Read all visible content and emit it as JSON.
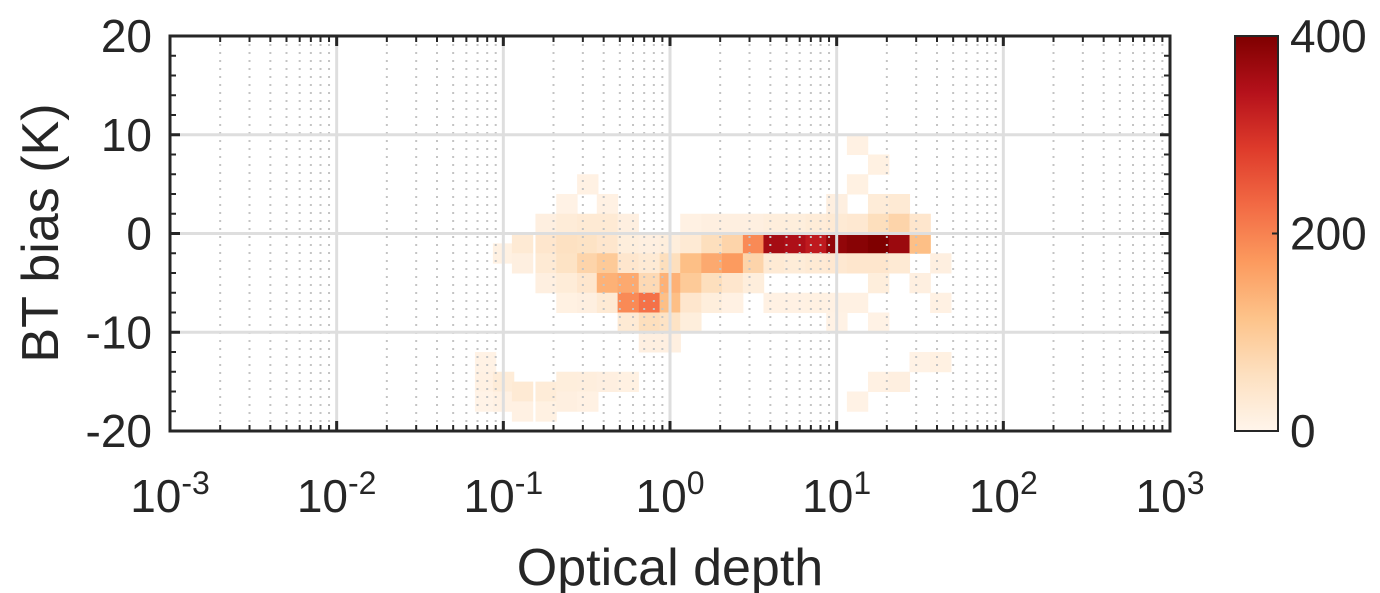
{
  "chart_data": {
    "type": "heatmap",
    "xlabel": "Optical depth",
    "ylabel": "BT bias (K)",
    "x_scale": "log",
    "xlim": [
      0.001,
      1000
    ],
    "ylim": [
      -20,
      20
    ],
    "x_ticks": [
      {
        "base": "10",
        "exp": "-3",
        "value": 0.001
      },
      {
        "base": "10",
        "exp": "-2",
        "value": 0.01
      },
      {
        "base": "10",
        "exp": "-1",
        "value": 0.1
      },
      {
        "base": "10",
        "exp": "0",
        "value": 1
      },
      {
        "base": "10",
        "exp": "1",
        "value": 10
      },
      {
        "base": "10",
        "exp": "2",
        "value": 100
      },
      {
        "base": "10",
        "exp": "3",
        "value": 1000
      }
    ],
    "y_ticks": [
      {
        "label": "20",
        "value": 20
      },
      {
        "label": "10",
        "value": 10
      },
      {
        "label": "0",
        "value": 0
      },
      {
        "label": "-10",
        "value": -10
      },
      {
        "label": "-20",
        "value": -20
      }
    ],
    "grid": true,
    "colorbar": {
      "range": [
        0,
        400
      ],
      "ticks": [
        {
          "label": "400",
          "value": 400
        },
        {
          "label": "200",
          "value": 200
        },
        {
          "label": "0",
          "value": 0
        }
      ],
      "colormap": [
        "#fff5eb",
        "#fde0c0",
        "#fdc38a",
        "#fc9a5e",
        "#f26a44",
        "#de3b2b",
        "#b5111b",
        "#7f0000"
      ]
    },
    "bin_width_log10": 0.125,
    "bin_height": 2,
    "cells": [
      [
        0.078,
        -13,
        8
      ],
      [
        0.078,
        -15,
        10
      ],
      [
        0.078,
        -17,
        5
      ],
      [
        0.1,
        -2,
        12
      ],
      [
        0.1,
        -15,
        25
      ],
      [
        0.1,
        -17,
        10
      ],
      [
        0.13,
        -1,
        30
      ],
      [
        0.13,
        -3,
        15
      ],
      [
        0.13,
        -16,
        30
      ],
      [
        0.13,
        -18,
        10
      ],
      [
        0.18,
        1,
        15
      ],
      [
        0.18,
        -1,
        40
      ],
      [
        0.18,
        -3,
        30
      ],
      [
        0.18,
        -5,
        15
      ],
      [
        0.18,
        -16,
        25
      ],
      [
        0.18,
        -18,
        12
      ],
      [
        0.24,
        3,
        8
      ],
      [
        0.24,
        1,
        25
      ],
      [
        0.24,
        -1,
        55
      ],
      [
        0.24,
        -3,
        50
      ],
      [
        0.24,
        -5,
        25
      ],
      [
        0.24,
        -7,
        12
      ],
      [
        0.24,
        -15,
        20
      ],
      [
        0.24,
        -17,
        15
      ],
      [
        0.32,
        5,
        10
      ],
      [
        0.32,
        1,
        30
      ],
      [
        0.32,
        -1,
        50
      ],
      [
        0.32,
        -3,
        80
      ],
      [
        0.32,
        -5,
        40
      ],
      [
        0.32,
        -7,
        15
      ],
      [
        0.32,
        -15,
        18
      ],
      [
        0.32,
        -17,
        10
      ],
      [
        0.42,
        3,
        10
      ],
      [
        0.42,
        1,
        30
      ],
      [
        0.42,
        -1,
        40
      ],
      [
        0.42,
        -3,
        100
      ],
      [
        0.42,
        -5,
        140
      ],
      [
        0.42,
        -7,
        30
      ],
      [
        0.42,
        -15,
        15
      ],
      [
        0.56,
        1,
        15
      ],
      [
        0.56,
        -1,
        20
      ],
      [
        0.56,
        -3,
        40
      ],
      [
        0.56,
        -5,
        150
      ],
      [
        0.56,
        -7,
        190
      ],
      [
        0.56,
        -9,
        30
      ],
      [
        0.56,
        -15,
        12
      ],
      [
        0.75,
        -1,
        15
      ],
      [
        0.75,
        -3,
        30
      ],
      [
        0.75,
        -5,
        70
      ],
      [
        0.75,
        -7,
        220
      ],
      [
        0.75,
        -9,
        60
      ],
      [
        0.75,
        -11,
        15
      ],
      [
        1.0,
        -1,
        20
      ],
      [
        1.0,
        -3,
        60
      ],
      [
        1.0,
        -5,
        140
      ],
      [
        1.0,
        -7,
        120
      ],
      [
        1.0,
        -9,
        50
      ],
      [
        1.0,
        -11,
        15
      ],
      [
        1.33,
        1,
        10
      ],
      [
        1.33,
        -1,
        30
      ],
      [
        1.33,
        -3,
        120
      ],
      [
        1.33,
        -5,
        100
      ],
      [
        1.33,
        -7,
        40
      ],
      [
        1.33,
        -9,
        20
      ],
      [
        1.78,
        1,
        15
      ],
      [
        1.78,
        -1,
        60
      ],
      [
        1.78,
        -3,
        150
      ],
      [
        1.78,
        -5,
        60
      ],
      [
        1.78,
        -7,
        20
      ],
      [
        2.37,
        1,
        15
      ],
      [
        2.37,
        -1,
        80
      ],
      [
        2.37,
        -3,
        170
      ],
      [
        2.37,
        -5,
        40
      ],
      [
        2.37,
        -7,
        10
      ],
      [
        3.16,
        1,
        15
      ],
      [
        3.16,
        -1,
        190
      ],
      [
        3.16,
        -3,
        80
      ],
      [
        3.16,
        -5,
        20
      ],
      [
        4.2,
        1,
        20
      ],
      [
        4.2,
        -1,
        360
      ],
      [
        4.2,
        -3,
        30
      ],
      [
        4.2,
        -7,
        10
      ],
      [
        5.6,
        1,
        20
      ],
      [
        5.6,
        -1,
        350
      ],
      [
        5.6,
        -3,
        25
      ],
      [
        5.6,
        -7,
        10
      ],
      [
        7.5,
        1,
        25
      ],
      [
        7.5,
        -1,
        330
      ],
      [
        7.5,
        -3,
        30
      ],
      [
        7.5,
        -7,
        12
      ],
      [
        10.0,
        3,
        15
      ],
      [
        10.0,
        1,
        30
      ],
      [
        10.0,
        -1,
        380
      ],
      [
        10.0,
        -3,
        35
      ],
      [
        10.0,
        -7,
        10
      ],
      [
        10.0,
        -9,
        8
      ],
      [
        13.3,
        9,
        10
      ],
      [
        13.3,
        5,
        12
      ],
      [
        13.3,
        1,
        35
      ],
      [
        13.3,
        -1,
        390
      ],
      [
        13.3,
        -3,
        40
      ],
      [
        13.3,
        -7,
        10
      ],
      [
        13.3,
        -17,
        8
      ],
      [
        17.8,
        7,
        12
      ],
      [
        17.8,
        3,
        25
      ],
      [
        17.8,
        1,
        60
      ],
      [
        17.8,
        -1,
        400
      ],
      [
        17.8,
        -3,
        40
      ],
      [
        17.8,
        -5,
        20
      ],
      [
        17.8,
        -9,
        8
      ],
      [
        17.8,
        -15,
        10
      ],
      [
        23.7,
        3,
        30
      ],
      [
        23.7,
        1,
        80
      ],
      [
        23.7,
        -1,
        370
      ],
      [
        23.7,
        -3,
        30
      ],
      [
        23.7,
        -15,
        15
      ],
      [
        31.6,
        1,
        40
      ],
      [
        31.6,
        -1,
        120
      ],
      [
        31.6,
        -5,
        15
      ],
      [
        31.6,
        -13,
        8
      ],
      [
        42.0,
        -3,
        15
      ],
      [
        42.0,
        -7,
        10
      ],
      [
        42.0,
        -13,
        12
      ]
    ]
  }
}
